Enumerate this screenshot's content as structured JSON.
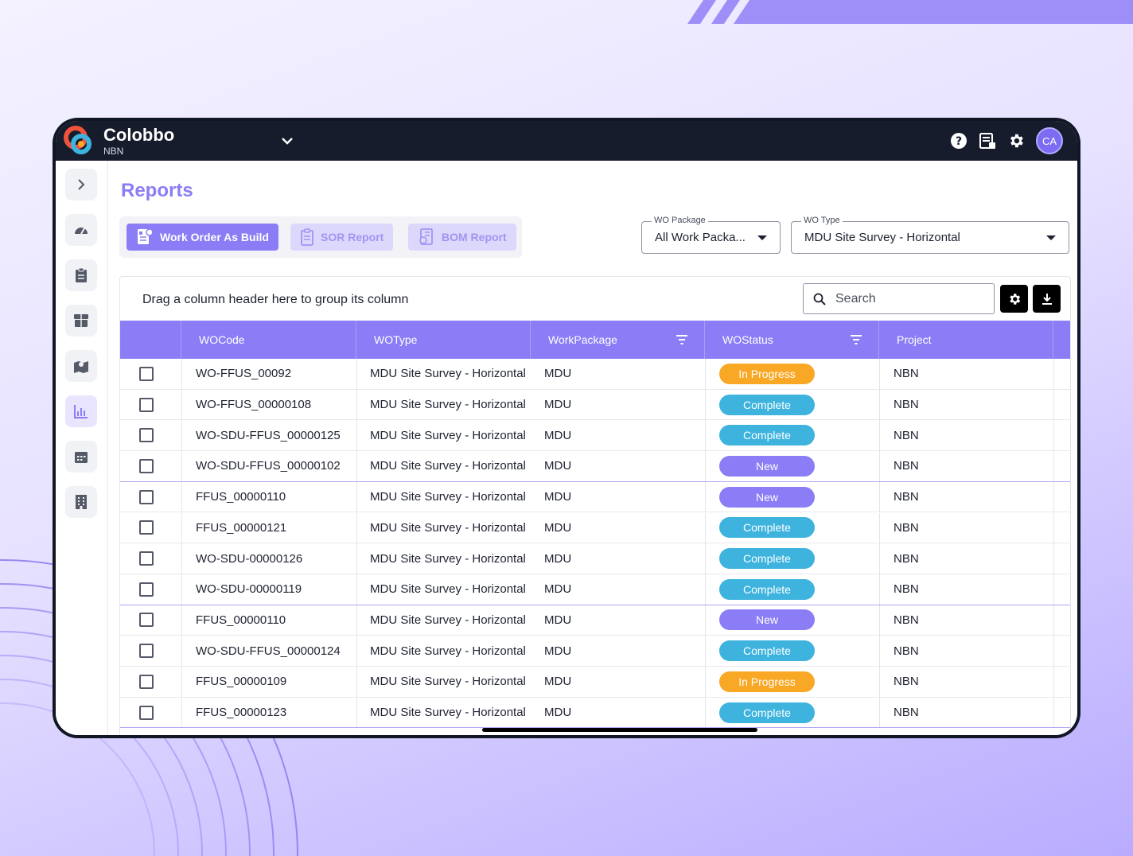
{
  "app": {
    "name": "Colobbo",
    "org": "NBN",
    "user_initials": "CA"
  },
  "colors": {
    "accent": "#8a7df5",
    "complete": "#3db3de",
    "in_progress": "#f9a825",
    "new": "#8a7df5",
    "topbar": "#161c2b"
  },
  "topbar_icons": [
    "help-icon",
    "report-icon",
    "gear-icon"
  ],
  "sidebar": [
    "chevron-right-icon",
    "dashboard-icon",
    "clipboard-icon",
    "box-icon",
    "map-icon",
    "chart-icon",
    "calendar-icon",
    "building-icon"
  ],
  "page": {
    "title": "Reports"
  },
  "tabs": [
    {
      "label": "Work Order As Build"
    },
    {
      "label": "SOR Report"
    },
    {
      "label": "BOM Report"
    }
  ],
  "filters": {
    "wo_package": {
      "label": "WO Package",
      "value": "All Work Packa..."
    },
    "wo_type": {
      "label": "WO Type",
      "value": "MDU Site Survey - Horizontal"
    }
  },
  "grid": {
    "group_hint": "Drag a column header here to group its column",
    "search_placeholder": "Search",
    "columns": [
      "WOCode",
      "WOType",
      "WorkPackage",
      "WOStatus",
      "Project"
    ],
    "rows": [
      {
        "code": "WO-FFUS_00092",
        "type": "MDU Site Survey - Horizontal",
        "package": "MDU",
        "status": "In Progress",
        "project": "NBN"
      },
      {
        "code": "WO-FFUS_00000108",
        "type": "MDU Site Survey - Horizontal",
        "package": "MDU",
        "status": "Complete",
        "project": "NBN"
      },
      {
        "code": "WO-SDU-FFUS_00000125",
        "type": "MDU Site Survey - Horizontal",
        "package": "MDU",
        "status": "Complete",
        "project": "NBN"
      },
      {
        "code": "WO-SDU-FFUS_00000102",
        "type": "MDU Site Survey - Horizontal",
        "package": "MDU",
        "status": "New",
        "project": "NBN"
      },
      {
        "code": "FFUS_00000110",
        "type": "MDU Site Survey - Horizontal",
        "package": "MDU",
        "status": "New",
        "project": "NBN"
      },
      {
        "code": "FFUS_00000121",
        "type": "MDU Site Survey - Horizontal",
        "package": "MDU",
        "status": "Complete",
        "project": "NBN"
      },
      {
        "code": "WO-SDU-00000126",
        "type": "MDU Site Survey - Horizontal",
        "package": "MDU",
        "status": "Complete",
        "project": "NBN"
      },
      {
        "code": "WO-SDU-00000119",
        "type": "MDU Site Survey - Horizontal",
        "package": "MDU",
        "status": "Complete",
        "project": "NBN"
      },
      {
        "code": "FFUS_00000110",
        "type": "MDU Site Survey - Horizontal",
        "package": "MDU",
        "status": "New",
        "project": "NBN"
      },
      {
        "code": "WO-SDU-FFUS_00000124",
        "type": "MDU Site Survey - Horizontal",
        "package": "MDU",
        "status": "Complete",
        "project": "NBN"
      },
      {
        "code": "FFUS_00000109",
        "type": "MDU Site Survey - Horizontal",
        "package": "MDU",
        "status": "In Progress",
        "project": "NBN"
      },
      {
        "code": "FFUS_00000123",
        "type": "MDU Site Survey - Horizontal",
        "package": "MDU",
        "status": "Complete",
        "project": "NBN"
      }
    ]
  }
}
